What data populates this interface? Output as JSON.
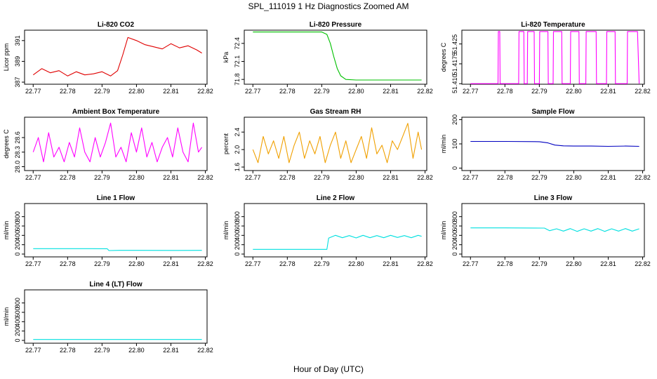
{
  "page": {
    "title": "SPL_111019  1 Hz Diagnostics Zoomed AM",
    "xlabel": "Hour of Day (UTC)"
  },
  "chart_data": [
    {
      "id": "co2",
      "type": "line",
      "title": "Li-820 CO2",
      "ylabel": "Licor ppm",
      "color": "#e00000",
      "xlim": [
        22.77,
        22.819
      ],
      "ylim": [
        386.8,
        392.0
      ],
      "xticks": [
        22.77,
        22.78,
        22.79,
        22.8,
        22.81,
        22.82
      ],
      "xtick_labels": [
        "22.77",
        "22.78",
        "22.79",
        "22.80",
        "22.81",
        "22.82"
      ],
      "yticks": [
        387,
        389,
        391
      ],
      "ytick_labels": [
        "387",
        "389",
        "391"
      ],
      "series": [
        {
          "name": "CO2",
          "x": [
            22.77,
            22.7725,
            22.775,
            22.7775,
            22.78,
            22.7825,
            22.785,
            22.7875,
            22.79,
            22.7925,
            22.7945,
            22.796,
            22.7975,
            22.8,
            22.8025,
            22.805,
            22.8075,
            22.81,
            22.8125,
            22.815,
            22.8175,
            22.819
          ],
          "y": [
            387.7,
            388.3,
            387.9,
            388.1,
            387.6,
            388.0,
            387.7,
            387.8,
            388.0,
            387.6,
            388.1,
            389.6,
            391.3,
            391.0,
            390.6,
            390.4,
            390.2,
            390.7,
            390.3,
            390.5,
            390.1,
            389.8
          ]
        }
      ]
    },
    {
      "id": "pressure",
      "type": "line",
      "title": "Li-820 Pressure",
      "ylabel": "kPa",
      "color": "#00c000",
      "xlim": [
        22.77,
        22.819
      ],
      "ylim": [
        71.72,
        72.62
      ],
      "xticks": [
        22.77,
        22.78,
        22.79,
        22.8,
        22.81,
        22.82
      ],
      "xtick_labels": [
        "22.77",
        "22.78",
        "22.79",
        "22.80",
        "22.81",
        "22.82"
      ],
      "yticks": [
        71.8,
        72.1,
        72.4
      ],
      "ytick_labels": [
        "71.8",
        "72.1",
        "72.4"
      ],
      "series": [
        {
          "name": "Pressure",
          "x": [
            22.77,
            22.78,
            22.79,
            22.7915,
            22.7925,
            22.7935,
            22.7945,
            22.7955,
            22.797,
            22.8,
            22.805,
            22.81,
            22.819
          ],
          "y": [
            72.59,
            72.59,
            72.59,
            72.55,
            72.4,
            72.18,
            71.98,
            71.86,
            71.8,
            71.79,
            71.79,
            71.79,
            71.79
          ]
        }
      ]
    },
    {
      "id": "temperature",
      "type": "line",
      "title": "Li-820 Temperature",
      "ylabel": "degrees C",
      "color": "#ff00ff",
      "xlim": [
        22.77,
        22.819
      ],
      "ylim": [
        51.4098,
        51.4302
      ],
      "xticks": [
        22.77,
        22.78,
        22.79,
        22.8,
        22.81,
        22.82
      ],
      "xtick_labels": [
        "22.77",
        "22.78",
        "22.79",
        "22.80",
        "22.81",
        "22.82"
      ],
      "yticks": [
        51.41,
        51.4175,
        51.425
      ],
      "ytick_labels": [
        "51.410",
        "51.4175",
        "51.425"
      ],
      "series": [
        {
          "name": "Temperature",
          "x": [
            22.77,
            22.778,
            22.7781,
            22.7785,
            22.7786,
            22.784,
            22.7841,
            22.7855,
            22.7856,
            22.7865,
            22.7866,
            22.7885,
            22.7886,
            22.79,
            22.7901,
            22.7925,
            22.7926,
            22.794,
            22.7941,
            22.7965,
            22.7966,
            22.799,
            22.7991,
            22.8015,
            22.8016,
            22.8035,
            22.8036,
            22.8065,
            22.8066,
            22.8095,
            22.8096,
            22.812,
            22.8121,
            22.8155,
            22.8156,
            22.8185,
            22.819
          ],
          "y": [
            51.41,
            51.41,
            51.4297,
            51.4297,
            51.41,
            51.41,
            51.4297,
            51.4297,
            51.41,
            51.41,
            51.4297,
            51.4297,
            51.41,
            51.41,
            51.4297,
            51.4297,
            51.41,
            51.41,
            51.4297,
            51.4297,
            51.41,
            51.41,
            51.4297,
            51.4297,
            51.41,
            51.41,
            51.4297,
            51.4297,
            51.41,
            51.41,
            51.4297,
            51.4297,
            51.41,
            51.41,
            51.4297,
            51.4297,
            51.41
          ]
        }
      ]
    },
    {
      "id": "box_temperature",
      "type": "line",
      "title": "Ambient Box Temperature",
      "ylabel": "degrees C",
      "color": "#ff00ff",
      "xlim": [
        22.77,
        22.819
      ],
      "ylim": [
        27.92,
        29.02
      ],
      "xticks": [
        22.77,
        22.78,
        22.79,
        22.8,
        22.81,
        22.82
      ],
      "xtick_labels": [
        "22.77",
        "22.78",
        "22.79",
        "22.80",
        "22.81",
        "22.82"
      ],
      "yticks": [
        28.0,
        28.3,
        28.6
      ],
      "ytick_labels": [
        "28.0",
        "28.3",
        "28.6"
      ],
      "series": [
        {
          "name": "Box Temperature",
          "x": [
            22.77,
            22.7715,
            22.773,
            22.7745,
            22.776,
            22.7775,
            22.779,
            22.7805,
            22.782,
            22.7835,
            22.785,
            22.7865,
            22.788,
            22.7895,
            22.791,
            22.7925,
            22.794,
            22.7955,
            22.797,
            22.7985,
            22.8,
            22.8015,
            22.803,
            22.8045,
            22.806,
            22.8075,
            22.809,
            22.8105,
            22.812,
            22.8135,
            22.815,
            22.8165,
            22.818,
            22.819
          ],
          "y": [
            28.3,
            28.6,
            28.1,
            28.7,
            28.2,
            28.4,
            28.1,
            28.5,
            28.2,
            28.8,
            28.3,
            28.1,
            28.6,
            28.2,
            28.5,
            28.9,
            28.2,
            28.4,
            28.1,
            28.7,
            28.3,
            28.8,
            28.2,
            28.5,
            28.1,
            28.4,
            28.6,
            28.2,
            28.8,
            28.3,
            28.1,
            28.9,
            28.3,
            28.4
          ]
        }
      ]
    },
    {
      "id": "rh",
      "type": "line",
      "title": "Gas Stream RH",
      "ylabel": "percent",
      "color": "#f0a000",
      "xlim": [
        22.77,
        22.819
      ],
      "ylim": [
        1.52,
        2.74
      ],
      "xticks": [
        22.77,
        22.78,
        22.79,
        22.8,
        22.81,
        22.82
      ],
      "xtick_labels": [
        "22.77",
        "22.78",
        "22.79",
        "22.80",
        "22.81",
        "22.82"
      ],
      "yticks": [
        1.6,
        2.0,
        2.4
      ],
      "ytick_labels": [
        "1.6",
        "2.0",
        "2.4"
      ],
      "series": [
        {
          "name": "RH",
          "x": [
            22.77,
            22.7715,
            22.773,
            22.7745,
            22.776,
            22.7775,
            22.779,
            22.7805,
            22.782,
            22.7835,
            22.785,
            22.7865,
            22.788,
            22.7895,
            22.791,
            22.7925,
            22.794,
            22.7955,
            22.797,
            22.7985,
            22.8,
            22.8015,
            22.803,
            22.8045,
            22.806,
            22.8075,
            22.809,
            22.8105,
            22.812,
            22.8135,
            22.815,
            22.8165,
            22.818,
            22.819
          ],
          "y": [
            2.0,
            1.7,
            2.3,
            1.9,
            2.2,
            1.8,
            2.3,
            1.7,
            2.1,
            2.4,
            1.8,
            2.2,
            1.9,
            2.3,
            1.7,
            2.1,
            2.4,
            1.8,
            2.2,
            1.7,
            2.0,
            2.3,
            1.8,
            2.5,
            1.9,
            2.1,
            1.7,
            2.2,
            2.0,
            2.3,
            2.6,
            1.8,
            2.4,
            2.0
          ]
        }
      ]
    },
    {
      "id": "sample_flow",
      "type": "line",
      "title": "Sample Flow",
      "ylabel": "ml/min",
      "color": "#0000c0",
      "xlim": [
        22.77,
        22.819
      ],
      "ylim": [
        -10,
        210
      ],
      "xticks": [
        22.77,
        22.78,
        22.79,
        22.8,
        22.81,
        22.82
      ],
      "xtick_labels": [
        "22.77",
        "22.78",
        "22.79",
        "22.80",
        "22.81",
        "22.82"
      ],
      "yticks": [
        0,
        100,
        200
      ],
      "ytick_labels": [
        "0",
        "100",
        "200"
      ],
      "series": [
        {
          "name": "Sample Flow",
          "x": [
            22.77,
            22.78,
            22.79,
            22.7925,
            22.7945,
            22.797,
            22.8,
            22.805,
            22.81,
            22.815,
            22.819
          ],
          "y": [
            110,
            110,
            109,
            104,
            95,
            92,
            91,
            91,
            90,
            91,
            90
          ]
        }
      ]
    },
    {
      "id": "line1_flow",
      "type": "line",
      "title": "Line 1 Flow",
      "ylabel": "ml/min",
      "color": "#00e0e0",
      "xlim": [
        22.77,
        22.819
      ],
      "ylim": [
        -60,
        1080
      ],
      "xticks": [
        22.77,
        22.78,
        22.79,
        22.8,
        22.81,
        22.82
      ],
      "xtick_labels": [
        "22.77",
        "22.78",
        "22.79",
        "22.80",
        "22.81",
        "22.82"
      ],
      "yticks": [
        0,
        200,
        400,
        600,
        800
      ],
      "ytick_labels": [
        "0",
        "200",
        "400",
        "600",
        "800"
      ],
      "series": [
        {
          "name": "Line 1 Flow",
          "x": [
            22.77,
            22.78,
            22.7915,
            22.792,
            22.795,
            22.8,
            22.81,
            22.819
          ],
          "y": [
            115,
            115,
            114,
            75,
            80,
            80,
            78,
            80
          ]
        }
      ]
    },
    {
      "id": "line2_flow",
      "type": "line",
      "title": "Line 2 Flow",
      "ylabel": "ml/min",
      "color": "#00e0e0",
      "xlim": [
        22.77,
        22.819
      ],
      "ylim": [
        -60,
        1080
      ],
      "xticks": [
        22.77,
        22.78,
        22.79,
        22.8,
        22.81,
        22.82
      ],
      "xtick_labels": [
        "22.77",
        "22.78",
        "22.79",
        "22.80",
        "22.81",
        "22.82"
      ],
      "yticks": [
        0,
        200,
        400,
        600,
        800
      ],
      "ytick_labels": [
        "0",
        "200",
        "400",
        "600",
        "800"
      ],
      "series": [
        {
          "name": "Line 2 Flow",
          "x": [
            22.77,
            22.78,
            22.7915,
            22.792,
            22.794,
            22.796,
            22.798,
            22.8,
            22.802,
            22.804,
            22.806,
            22.808,
            22.81,
            22.812,
            22.814,
            22.816,
            22.818,
            22.819
          ],
          "y": [
            100,
            100,
            100,
            340,
            400,
            350,
            395,
            345,
            400,
            350,
            395,
            350,
            400,
            355,
            395,
            350,
            400,
            380
          ]
        }
      ]
    },
    {
      "id": "line3_flow",
      "type": "line",
      "title": "Line 3 Flow",
      "ylabel": "ml/min",
      "color": "#00e0e0",
      "xlim": [
        22.77,
        22.819
      ],
      "ylim": [
        -60,
        1080
      ],
      "xticks": [
        22.77,
        22.78,
        22.79,
        22.8,
        22.81,
        22.82
      ],
      "xtick_labels": [
        "22.77",
        "22.78",
        "22.79",
        "22.80",
        "22.81",
        "22.82"
      ],
      "yticks": [
        0,
        200,
        400,
        600,
        800
      ],
      "ytick_labels": [
        "0",
        "200",
        "400",
        "600",
        "800"
      ],
      "series": [
        {
          "name": "Line 3 Flow",
          "x": [
            22.77,
            22.78,
            22.7915,
            22.793,
            22.795,
            22.797,
            22.799,
            22.801,
            22.803,
            22.805,
            22.807,
            22.809,
            22.811,
            22.813,
            22.815,
            22.817,
            22.819
          ],
          "y": [
            560,
            560,
            555,
            500,
            540,
            490,
            545,
            485,
            540,
            490,
            545,
            485,
            540,
            490,
            545,
            490,
            540
          ]
        }
      ]
    },
    {
      "id": "line4_flow",
      "type": "line",
      "title": "Line 4 (LT) Flow",
      "ylabel": "ml/min",
      "color": "#00e0e0",
      "xlim": [
        22.77,
        22.819
      ],
      "ylim": [
        -60,
        1080
      ],
      "xticks": [
        22.77,
        22.78,
        22.79,
        22.8,
        22.81,
        22.82
      ],
      "xtick_labels": [
        "22.77",
        "22.78",
        "22.79",
        "22.80",
        "22.81",
        "22.82"
      ],
      "yticks": [
        0,
        200,
        400,
        600,
        800
      ],
      "ytick_labels": [
        "0",
        "200",
        "400",
        "600",
        "800"
      ],
      "series": [
        {
          "name": "Line 4 Flow",
          "x": [
            22.77,
            22.78,
            22.79,
            22.8,
            22.81,
            22.819
          ],
          "y": [
            20,
            20,
            20,
            20,
            20,
            20
          ]
        }
      ]
    }
  ]
}
